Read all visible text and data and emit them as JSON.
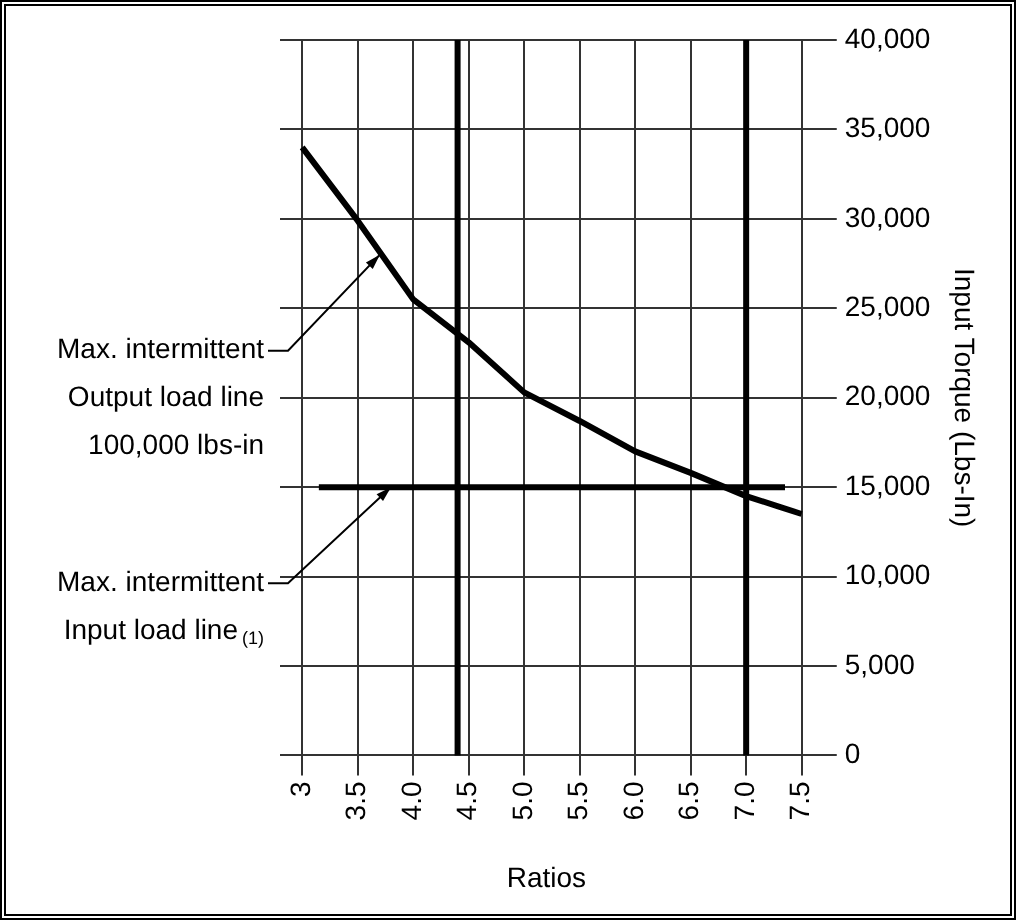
{
  "chart_data": {
    "type": "line",
    "xlabel": "Ratios",
    "ylabel": "Input Torque (Lbs-In)",
    "x": [
      3,
      3.5,
      4,
      4.5,
      5,
      5.5,
      6,
      6.5,
      7,
      7.5
    ],
    "series": [
      {
        "color": "#000000",
        "values": [
          34000,
          29900,
          25500,
          23100,
          20300,
          18700,
          17000,
          15800,
          14500,
          13500
        ]
      },
      {
        "color": "#000000",
        "x": [
          3.15,
          7.35
        ],
        "values": [
          15000,
          15000
        ]
      }
    ],
    "xlim": [
      2.8,
      7.6
    ],
    "xticks": [
      3,
      3.5,
      {
        "value": 4,
        "label": "4.0"
      },
      4.5,
      {
        "value": 5,
        "label": "5.0"
      },
      5.5,
      {
        "value": 6,
        "label": "6.0"
      },
      6.5,
      {
        "value": 7,
        "label": "7.0"
      },
      7.5
    ],
    "ylim": [
      0,
      40000
    ],
    "yticks": [
      {
        "value": 0,
        "label": "0"
      },
      {
        "value": 5000,
        "label": "5,000"
      },
      {
        "value": 10000,
        "label": "10,000"
      },
      {
        "value": 15000,
        "label": "15,000"
      },
      {
        "value": 20000,
        "label": "20,000"
      },
      {
        "value": 25000,
        "label": "25,000"
      },
      {
        "value": 30000,
        "label": "30,000"
      },
      {
        "value": 35000,
        "label": "35,000"
      },
      {
        "value": 40000,
        "label": "40,000"
      }
    ],
    "ref_lines": [
      {
        "axis": "x",
        "value": 4.4,
        "color": "#000000"
      },
      {
        "axis": "x",
        "value": 7,
        "color": "#000000"
      }
    ],
    "annotations": [
      {
        "text": "Max. intermittent\nOutput load line\n100,000 lbs-in",
        "x": 3.7,
        "y": 28000
      },
      {
        "text": "Max. intermittent\nInput load line$_{(1)}$",
        "x": 3.8,
        "y": 15000
      }
    ],
    "grid": true,
    "legend": false,
    "marker": "none",
    "line_style": "solid"
  }
}
